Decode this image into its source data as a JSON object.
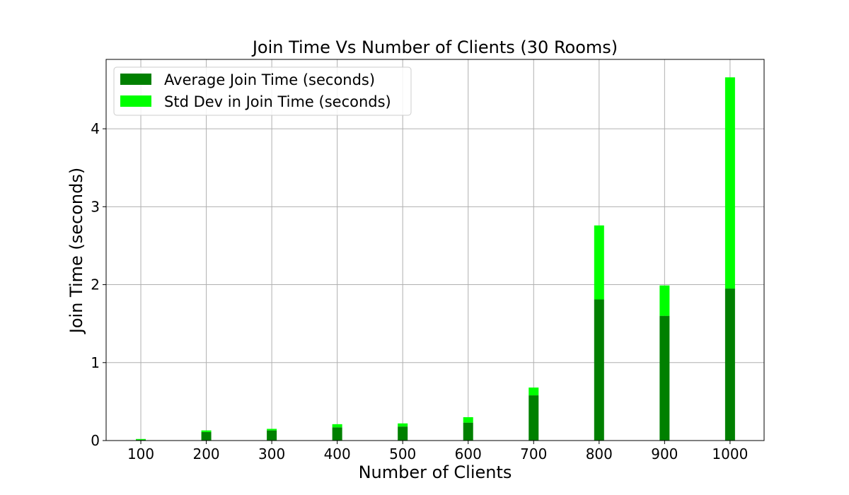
{
  "chart_data": {
    "type": "bar",
    "stacked": true,
    "title": "Join Time Vs Number of Clients (30 Rooms)",
    "xlabel": "Number of Clients",
    "ylabel": "Join Time (seconds)",
    "x": [
      100,
      200,
      300,
      400,
      500,
      600,
      700,
      800,
      900,
      1000
    ],
    "xlim": [
      47,
      1052
    ],
    "ylim": [
      0,
      4.89
    ],
    "yticks": [
      0,
      1,
      2,
      3,
      4
    ],
    "grid": true,
    "legend_position": "top-left",
    "series": [
      {
        "name": "Average Join Time (seconds)",
        "color": "#008000",
        "values": [
          0.01,
          0.11,
          0.13,
          0.17,
          0.18,
          0.23,
          0.58,
          1.81,
          1.6,
          1.95
        ]
      },
      {
        "name": "Std Dev in Join Time (seconds)",
        "color": "#00ff00",
        "values": [
          0.01,
          0.02,
          0.02,
          0.04,
          0.04,
          0.07,
          0.1,
          0.95,
          0.39,
          2.71
        ]
      }
    ]
  }
}
